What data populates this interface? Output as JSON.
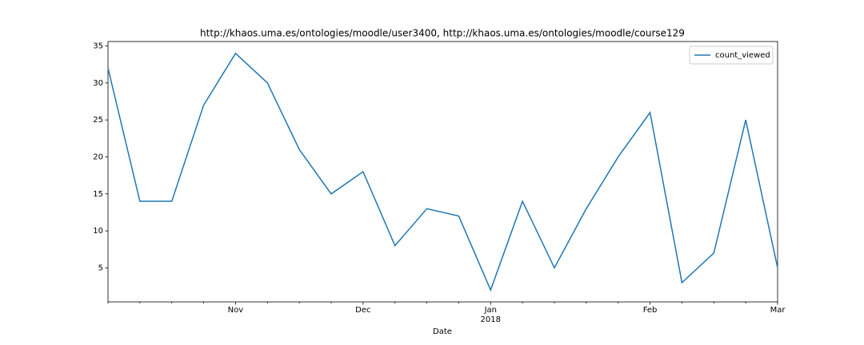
{
  "chart_data": {
    "type": "line",
    "title": "http://khaos.uma.es/ontologies/moodle/user3400, http://khaos.uma.es/ontologies/moodle/course129",
    "x_label": "Date",
    "categories": [
      null,
      null,
      null,
      null,
      "Nov",
      null,
      null,
      null,
      "Dec",
      null,
      null,
      null,
      "Jan\n2018",
      null,
      null,
      null,
      null,
      "Feb",
      null,
      null,
      null,
      "Mar"
    ],
    "series": [
      {
        "name": "count_viewed",
        "color": "#1f77b4",
        "values": [
          32,
          14,
          14,
          27,
          34,
          30,
          21,
          15,
          18,
          8,
          13,
          12,
          2,
          14,
          5,
          13,
          20,
          26,
          3,
          7,
          25,
          5
        ]
      }
    ],
    "ylim": [
      0.4,
      35.6
    ],
    "yticks": [
      5,
      10,
      15,
      20,
      25,
      30,
      35
    ],
    "grid": false,
    "legend": "upper right"
  }
}
